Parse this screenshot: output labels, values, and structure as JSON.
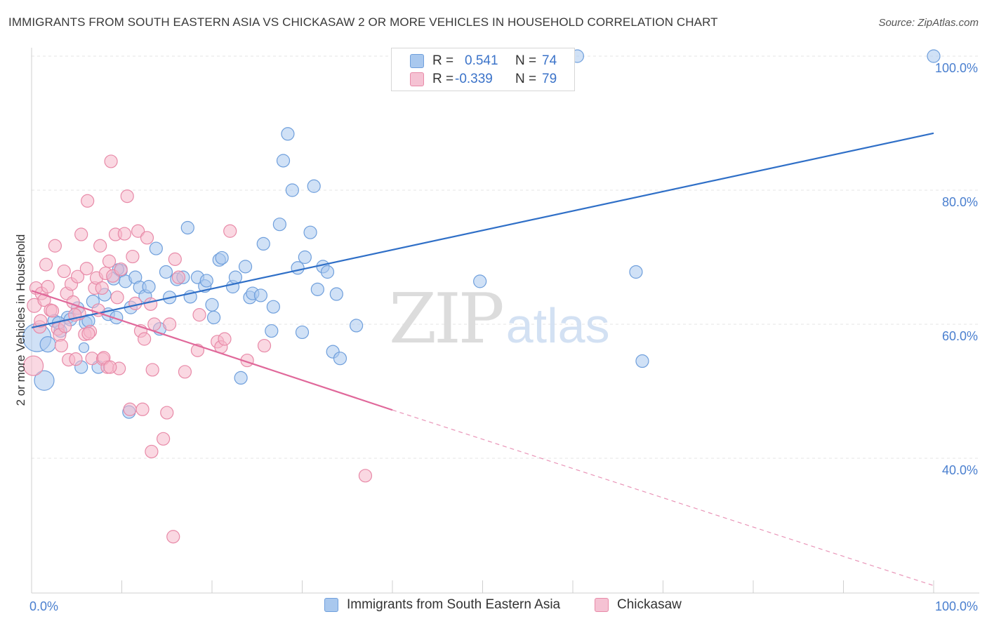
{
  "header": {
    "title": "IMMIGRANTS FROM SOUTH EASTERN ASIA VS CHICKASAW 2 OR MORE VEHICLES IN HOUSEHOLD CORRELATION CHART",
    "source": "Source: ZipAtlas.com"
  },
  "watermark": {
    "zip": "ZIP",
    "atlas": "atlas"
  },
  "legend_top": {
    "rows": [
      {
        "r_label": "R =",
        "r_value": "0.541",
        "n_label": "N =",
        "n_value": "74"
      },
      {
        "r_label": "R =",
        "r_value": "-0.339",
        "n_label": "N =",
        "n_value": "79"
      }
    ]
  },
  "chart_data": {
    "type": "scatter",
    "title": "IMMIGRANTS FROM SOUTH EASTERN ASIA VS CHICKASAW 2 OR MORE VEHICLES IN HOUSEHOLD CORRELATION CHART",
    "xlabel": "",
    "ylabel": "2 or more Vehicles in Household",
    "xlim": [
      0,
      100
    ],
    "ylim": [
      20,
      102
    ],
    "x_tick_labels": [
      "0.0%",
      "100.0%"
    ],
    "y_ticks": [
      {
        "value": 100,
        "label": "100.0%"
      },
      {
        "value": 80,
        "label": "80.0%"
      },
      {
        "value": 60,
        "label": "60.0%"
      },
      {
        "value": 40,
        "label": "40.0%"
      }
    ],
    "grid": "horizontal dashed",
    "legend_position": "bottom-center",
    "colors": {
      "blue_fill": "#a9c8ee",
      "blue_stroke": "#6f9fdc",
      "blue_line": "#2f6fc7",
      "pink_fill": "#f5b8cb",
      "pink_stroke": "#e88aa8",
      "pink_line": "#e0689a"
    },
    "series": [
      {
        "name": "Immigrants from South Eastern Asia",
        "color": "#6f9fdc",
        "trend": {
          "x0": 0,
          "y0": 59.5,
          "x1": 100,
          "y1": 88.5,
          "dashed_from": null
        },
        "points": [
          [
            0.6,
            58.0,
            20
          ],
          [
            1.4,
            51.6,
            14
          ],
          [
            1.8,
            57.0,
            11
          ],
          [
            2.5,
            60.5,
            9
          ],
          [
            3.2,
            59.0,
            9
          ],
          [
            4.0,
            61.0,
            9
          ],
          [
            4.3,
            60.7,
            9
          ],
          [
            5.1,
            62.4,
            9
          ],
          [
            5.5,
            53.6,
            9
          ],
          [
            6.0,
            60.2,
            9
          ],
          [
            6.3,
            60.5,
            9
          ],
          [
            6.8,
            63.4,
            9
          ],
          [
            7.4,
            53.6,
            9
          ],
          [
            8.1,
            64.4,
            9
          ],
          [
            8.5,
            61.5,
            9
          ],
          [
            9.1,
            66.8,
            9
          ],
          [
            9.4,
            61.0,
            9
          ],
          [
            9.9,
            68.0,
            9
          ],
          [
            10.4,
            66.4,
            9
          ],
          [
            10.8,
            46.9,
            9
          ],
          [
            11.0,
            62.5,
            9
          ],
          [
            11.5,
            67.0,
            9
          ],
          [
            12.0,
            65.5,
            9
          ],
          [
            12.6,
            64.2,
            9
          ],
          [
            13.0,
            65.6,
            9
          ],
          [
            13.8,
            71.3,
            9
          ],
          [
            14.2,
            59.3,
            9
          ],
          [
            14.9,
            67.8,
            9
          ],
          [
            15.3,
            64.0,
            9
          ],
          [
            16.1,
            66.7,
            9
          ],
          [
            16.8,
            67.0,
            9
          ],
          [
            17.3,
            74.4,
            9
          ],
          [
            17.6,
            64.1,
            9
          ],
          [
            18.4,
            67.0,
            9
          ],
          [
            19.2,
            65.7,
            9
          ],
          [
            19.4,
            66.5,
            9
          ],
          [
            20.0,
            62.9,
            9
          ],
          [
            20.2,
            61.0,
            9
          ],
          [
            20.8,
            69.6,
            9
          ],
          [
            21.1,
            69.9,
            9
          ],
          [
            22.3,
            65.6,
            9
          ],
          [
            22.6,
            67.0,
            9
          ],
          [
            23.2,
            52.0,
            9
          ],
          [
            23.7,
            68.6,
            9
          ],
          [
            24.2,
            64.0,
            9
          ],
          [
            24.5,
            64.6,
            9
          ],
          [
            25.4,
            64.3,
            9
          ],
          [
            25.7,
            72.0,
            9
          ],
          [
            26.6,
            59.0,
            9
          ],
          [
            26.8,
            62.6,
            9
          ],
          [
            27.5,
            74.9,
            9
          ],
          [
            27.9,
            84.4,
            9
          ],
          [
            28.4,
            88.4,
            9
          ],
          [
            28.9,
            80.0,
            9
          ],
          [
            29.5,
            68.4,
            9
          ],
          [
            30.0,
            58.8,
            9
          ],
          [
            30.3,
            70.0,
            9
          ],
          [
            30.9,
            73.7,
            9
          ],
          [
            31.3,
            80.6,
            9
          ],
          [
            31.7,
            65.2,
            9
          ],
          [
            32.3,
            68.6,
            9
          ],
          [
            32.8,
            67.8,
            9
          ],
          [
            33.4,
            55.9,
            9
          ],
          [
            33.8,
            64.5,
            9
          ],
          [
            34.2,
            54.9,
            9
          ],
          [
            36.0,
            59.8,
            9
          ],
          [
            49.7,
            66.4,
            9
          ],
          [
            60.5,
            100.0,
            9
          ],
          [
            67.0,
            67.8,
            9
          ],
          [
            67.7,
            54.5,
            9
          ],
          [
            100.0,
            100.0,
            9
          ],
          [
            3.0,
            60.2,
            9
          ],
          [
            5.8,
            56.5,
            7
          ],
          [
            9.6,
            68.2,
            8
          ]
        ]
      },
      {
        "name": "Chickasaw",
        "color": "#e88aa8",
        "trend": {
          "x0": 0,
          "y0": 65.0,
          "x1": 40.0,
          "y1": 47.2,
          "dashed_to": {
            "x": 100,
            "y": 21.0
          }
        },
        "points": [
          [
            0.2,
            53.8,
            14
          ],
          [
            0.3,
            62.8,
            10
          ],
          [
            0.5,
            65.4,
            9
          ],
          [
            0.9,
            59.6,
            9
          ],
          [
            1.1,
            64.6,
            9
          ],
          [
            1.4,
            63.6,
            9
          ],
          [
            1.6,
            68.9,
            9
          ],
          [
            1.8,
            65.6,
            9
          ],
          [
            2.1,
            62.1,
            9
          ],
          [
            2.6,
            71.7,
            9
          ],
          [
            2.9,
            59.3,
            9
          ],
          [
            3.1,
            58.4,
            9
          ],
          [
            3.3,
            56.8,
            9
          ],
          [
            3.6,
            67.9,
            9
          ],
          [
            3.9,
            64.6,
            9
          ],
          [
            4.1,
            54.7,
            9
          ],
          [
            4.4,
            66.0,
            9
          ],
          [
            4.6,
            63.3,
            9
          ],
          [
            4.9,
            54.8,
            9
          ],
          [
            5.1,
            67.1,
            9
          ],
          [
            5.3,
            61.6,
            9
          ],
          [
            5.5,
            73.4,
            9
          ],
          [
            5.9,
            58.5,
            9
          ],
          [
            6.1,
            68.3,
            9
          ],
          [
            6.2,
            78.4,
            9
          ],
          [
            6.5,
            58.9,
            9
          ],
          [
            6.7,
            54.9,
            9
          ],
          [
            7.0,
            65.4,
            9
          ],
          [
            7.2,
            66.9,
            9
          ],
          [
            7.6,
            71.7,
            9
          ],
          [
            7.8,
            65.4,
            9
          ],
          [
            7.9,
            54.8,
            9
          ],
          [
            8.2,
            67.6,
            9
          ],
          [
            8.4,
            53.6,
            9
          ],
          [
            8.6,
            69.4,
            9
          ],
          [
            8.8,
            84.3,
            9
          ],
          [
            9.0,
            67.2,
            9
          ],
          [
            9.3,
            73.4,
            9
          ],
          [
            9.5,
            64.0,
            9
          ],
          [
            9.7,
            53.4,
            9
          ],
          [
            9.9,
            68.2,
            9
          ],
          [
            10.3,
            73.5,
            9
          ],
          [
            10.6,
            79.1,
            9
          ],
          [
            10.9,
            47.3,
            9
          ],
          [
            11.2,
            70.1,
            9
          ],
          [
            11.5,
            63.1,
            9
          ],
          [
            11.8,
            73.9,
            9
          ],
          [
            12.1,
            59.0,
            9
          ],
          [
            12.3,
            47.3,
            9
          ],
          [
            12.5,
            57.8,
            9
          ],
          [
            12.8,
            72.9,
            9
          ],
          [
            13.2,
            63.0,
            9
          ],
          [
            13.6,
            60.0,
            9
          ],
          [
            13.4,
            53.2,
            9
          ],
          [
            13.3,
            41.0,
            9
          ],
          [
            14.6,
            42.9,
            9
          ],
          [
            15.0,
            46.8,
            9
          ],
          [
            15.3,
            60.0,
            9
          ],
          [
            15.7,
            28.3,
            9
          ],
          [
            15.9,
            69.7,
            9
          ],
          [
            16.3,
            67.0,
            9
          ],
          [
            17.0,
            52.9,
            9
          ],
          [
            18.4,
            56.1,
            9
          ],
          [
            18.6,
            61.4,
            9
          ],
          [
            20.6,
            57.4,
            9
          ],
          [
            21.0,
            56.6,
            9
          ],
          [
            21.4,
            57.8,
            9
          ],
          [
            22.0,
            73.9,
            9
          ],
          [
            23.9,
            54.6,
            9
          ],
          [
            25.8,
            56.8,
            9
          ],
          [
            37.0,
            37.4,
            9
          ],
          [
            1.0,
            60.5,
            9
          ],
          [
            2.3,
            62.0,
            9
          ],
          [
            3.7,
            59.7,
            9
          ],
          [
            4.8,
            61.4,
            9
          ],
          [
            6.3,
            58.6,
            9
          ],
          [
            7.4,
            62.1,
            9
          ],
          [
            8.0,
            55.0,
            9
          ],
          [
            8.7,
            53.6,
            9
          ]
        ]
      }
    ]
  }
}
